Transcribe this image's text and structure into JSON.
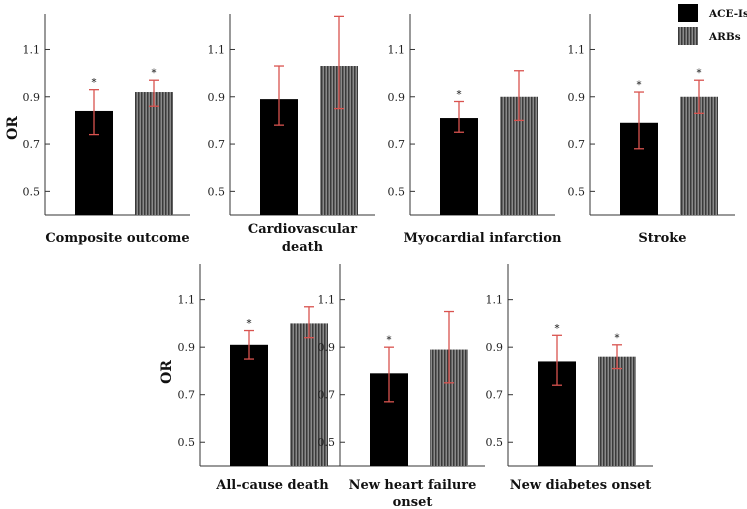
{
  "chart_data": {
    "type": "bar",
    "series_names": [
      "ACE-Is",
      "ARBs"
    ],
    "ylabel": "OR",
    "ylim": [
      0.4,
      1.25
    ],
    "yticks": [
      "0.5",
      "0.7",
      "0.9",
      "1.1"
    ],
    "colors": {
      "ace": "#000000",
      "arb": "#6e6e6e",
      "error": "#d9534f"
    },
    "panels": [
      {
        "title_lines": [
          "Composite outcome"
        ],
        "bars": [
          {
            "series": "ACE-Is",
            "value": 0.84,
            "lo": 0.74,
            "hi": 0.93,
            "sig": "*"
          },
          {
            "series": "ARBs",
            "value": 0.92,
            "lo": 0.86,
            "hi": 0.97,
            "sig": "*"
          }
        ]
      },
      {
        "title_lines": [
          "Cardiovascular",
          "death"
        ],
        "bars": [
          {
            "series": "ACE-Is",
            "value": 0.89,
            "lo": 0.78,
            "hi": 1.03,
            "sig": ""
          },
          {
            "series": "ARBs",
            "value": 1.03,
            "lo": 0.85,
            "hi": 1.24,
            "sig": ""
          }
        ]
      },
      {
        "title_lines": [
          "Myocardial infarction"
        ],
        "bars": [
          {
            "series": "ACE-Is",
            "value": 0.81,
            "lo": 0.75,
            "hi": 0.88,
            "sig": "*"
          },
          {
            "series": "ARBs",
            "value": 0.9,
            "lo": 0.8,
            "hi": 1.01,
            "sig": ""
          }
        ]
      },
      {
        "title_lines": [
          "Stroke"
        ],
        "bars": [
          {
            "series": "ACE-Is",
            "value": 0.79,
            "lo": 0.68,
            "hi": 0.92,
            "sig": "*"
          },
          {
            "series": "ARBs",
            "value": 0.9,
            "lo": 0.83,
            "hi": 0.97,
            "sig": "*"
          }
        ]
      },
      {
        "title_lines": [
          "All-cause death"
        ],
        "bars": [
          {
            "series": "ACE-Is",
            "value": 0.91,
            "lo": 0.85,
            "hi": 0.97,
            "sig": "*"
          },
          {
            "series": "ARBs",
            "value": 1.0,
            "lo": 0.94,
            "hi": 1.07,
            "sig": ""
          }
        ]
      },
      {
        "title_lines": [
          "New heart failure",
          "onset"
        ],
        "bars": [
          {
            "series": "ACE-Is",
            "value": 0.79,
            "lo": 0.67,
            "hi": 0.9,
            "sig": "*"
          },
          {
            "series": "ARBs",
            "value": 0.89,
            "lo": 0.75,
            "hi": 1.05,
            "sig": ""
          }
        ]
      },
      {
        "title_lines": [
          "New diabetes onset"
        ],
        "bars": [
          {
            "series": "ACE-Is",
            "value": 0.84,
            "lo": 0.74,
            "hi": 0.95,
            "sig": "*"
          },
          {
            "series": "ARBs",
            "value": 0.86,
            "lo": 0.81,
            "hi": 0.91,
            "sig": "*"
          }
        ]
      }
    ]
  }
}
